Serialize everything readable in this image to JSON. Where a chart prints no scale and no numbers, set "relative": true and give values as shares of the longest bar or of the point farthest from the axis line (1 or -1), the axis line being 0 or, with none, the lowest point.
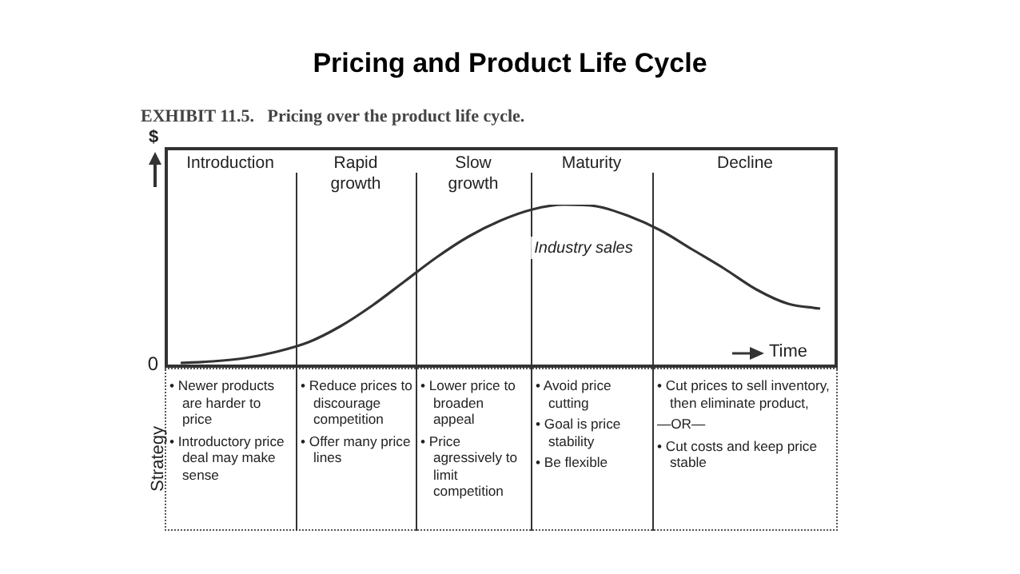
{
  "chart_data": {
    "type": "line",
    "title": "Pricing and Product Life Cycle",
    "subtitle": "EXHIBIT 11.5.   Pricing over the product life cycle.",
    "xlabel": "Time",
    "ylabel": "$",
    "relative": true,
    "marker": "none",
    "legend": false,
    "categories": [
      null,
      null,
      null,
      null,
      null,
      null,
      null,
      null,
      null,
      null,
      null,
      null,
      null,
      null,
      null,
      null,
      null,
      null,
      null,
      null,
      null
    ],
    "series": [
      {
        "name": "Industry sales",
        "color": "#333333",
        "values": [
          0.01,
          0.02,
          0.04,
          0.08,
          0.14,
          0.24,
          0.37,
          0.52,
          0.67,
          0.8,
          0.9,
          0.97,
          1.0,
          0.99,
          0.93,
          0.84,
          0.72,
          0.6,
          0.47,
          0.38,
          0.35
        ]
      }
    ],
    "annotations": [
      "0",
      "Introduction",
      "Rapid growth",
      "Slow growth",
      "Maturity",
      "Decline",
      "Strategy",
      "• Newer products are harder to price\n• Introductory price deal may make sense",
      "• Reduce prices to discourage competition\n• Offer many price lines",
      "• Lower price to broaden appeal\n• Price agressively to limit competition",
      "• Avoid price cutting\n• Goal is price stability\n• Be flexible",
      "• Cut prices to sell inventory, then eliminate product,\n—OR—\n• Cut costs and keep price stable"
    ]
  }
}
